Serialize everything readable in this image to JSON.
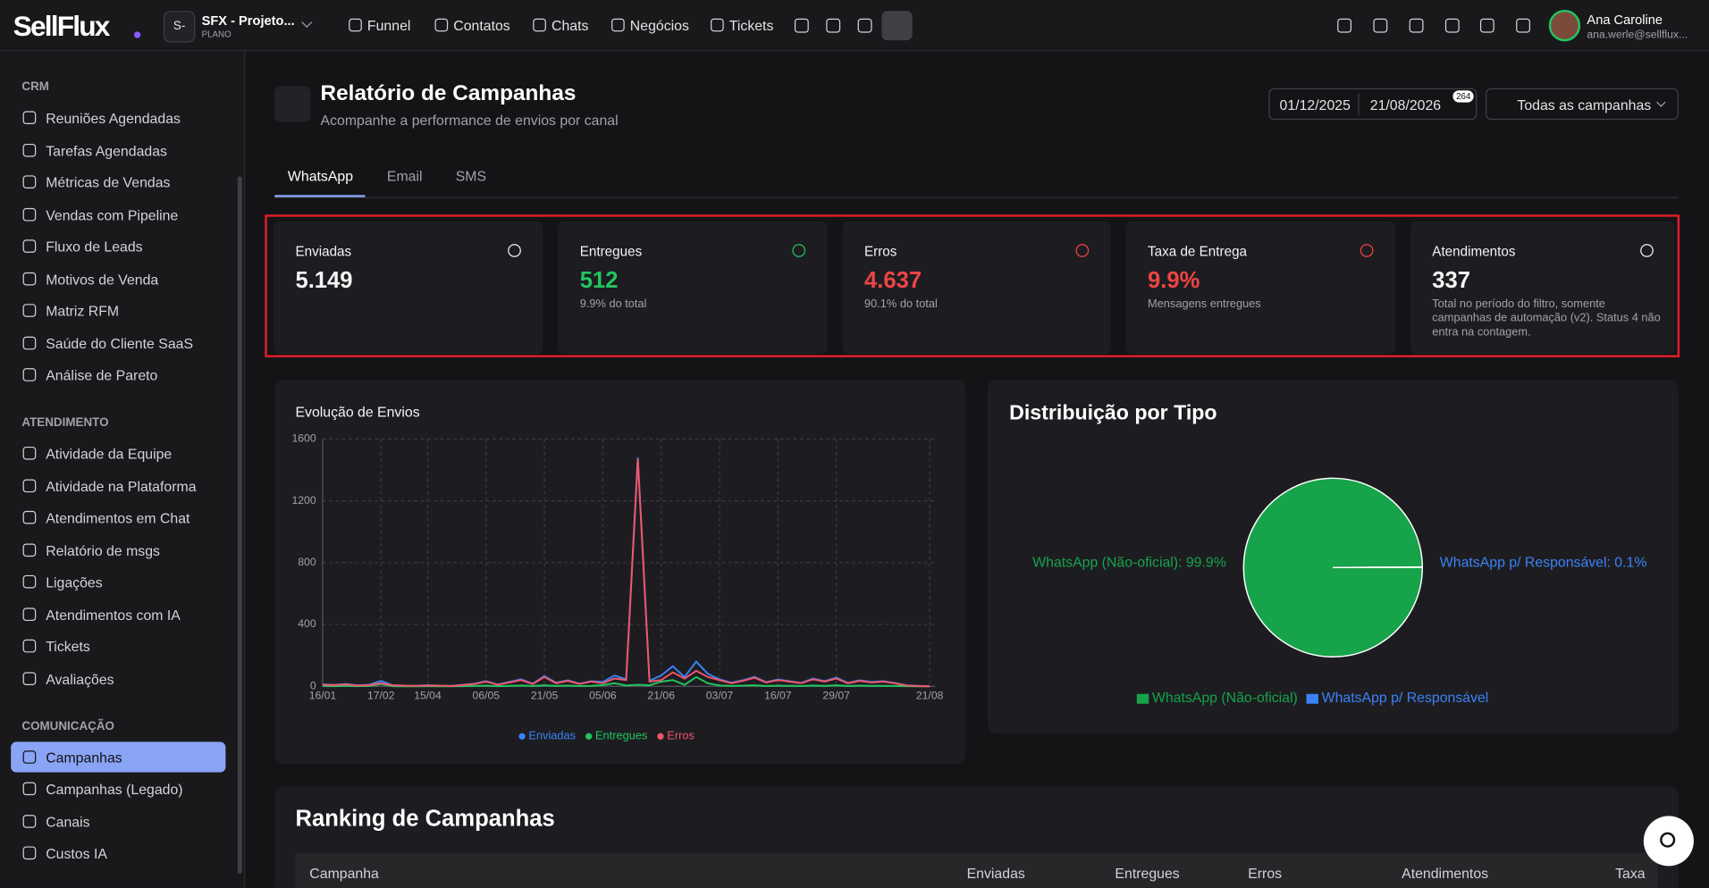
{
  "topbar": {
    "brand": "SellFlux",
    "workspace": {
      "badge": "S-",
      "name": "SFX - Projeto...",
      "plan": "PLANO"
    },
    "nav": [
      "Funnel",
      "Contatos",
      "Chats",
      "Negócios",
      "Tickets"
    ],
    "user": {
      "name": "Ana Caroline",
      "email": "ana.werle@sellflux..."
    }
  },
  "sidebar": {
    "active": "Campanhas",
    "sections": [
      {
        "title": "CRM",
        "items": [
          "Reuniões Agendadas",
          "Tarefas Agendadas",
          "Métricas de Vendas",
          "Vendas com Pipeline",
          "Fluxo de Leads",
          "Motivos de Venda",
          "Matriz RFM",
          "Saúde do Cliente SaaS",
          "Análise de Pareto"
        ]
      },
      {
        "title": "ATENDIMENTO",
        "items": [
          "Atividade da Equipe",
          "Atividade na Plataforma",
          "Atendimentos em Chat",
          "Relatório de msgs",
          "Ligações",
          "Atendimentos com IA",
          "Tickets",
          "Avaliações"
        ]
      },
      {
        "title": "COMUNICAÇÃO",
        "items": [
          "Campanhas",
          "Campanhas (Legado)",
          "Canais",
          "Custos IA"
        ]
      }
    ]
  },
  "header": {
    "title": "Relatório de Campanhas",
    "subtitle": "Acompanhe a performance de envios por canal",
    "date_start": "01/12/2025",
    "date_end": "21/08/2026",
    "badge": "264",
    "filter": "Todas as campanhas"
  },
  "tabs": {
    "items": [
      "WhatsApp",
      "Email",
      "SMS"
    ],
    "active": "WhatsApp"
  },
  "kpis": [
    {
      "label": "Enviadas",
      "value": "5.149",
      "note": "",
      "color": "#f4f4f5"
    },
    {
      "label": "Entregues",
      "value": "512",
      "note": "9.9% do total",
      "color": "#22c55e"
    },
    {
      "label": "Erros",
      "value": "4.637",
      "note": "90.1% do total",
      "color": "#ef4444"
    },
    {
      "label": "Taxa de Entrega",
      "value": "9.9%",
      "note": "Mensagens entregues",
      "color": "#ef4444"
    },
    {
      "label": "Atendimentos",
      "value": "337",
      "note": "Total no período do filtro, somente campanhas de automação (v2). Status 4 não entra na contagem.",
      "color": "#f4f4f5"
    }
  ],
  "chart_data": [
    {
      "type": "line",
      "title": "Evolução de Envios",
      "categories": [
        "16/01",
        null,
        null,
        null,
        null,
        "17/02",
        null,
        null,
        null,
        "15/04",
        null,
        null,
        null,
        null,
        "06/05",
        null,
        null,
        null,
        null,
        "21/05",
        null,
        null,
        null,
        null,
        "05/06",
        null,
        null,
        null,
        null,
        "21/06",
        null,
        null,
        null,
        null,
        "03/07",
        null,
        null,
        null,
        null,
        "16/07",
        null,
        null,
        null,
        null,
        "29/07",
        null,
        null,
        null,
        null,
        null,
        null,
        null,
        "21/08"
      ],
      "series": [
        {
          "name": "Enviadas",
          "color": "#3b82f6",
          "values": [
            12,
            9,
            15,
            6,
            10,
            35,
            7,
            4,
            3,
            6,
            4,
            2,
            9,
            17,
            34,
            11,
            28,
            45,
            17,
            66,
            23,
            39,
            17,
            33,
            28,
            70,
            45,
            1480,
            36,
            70,
            130,
            60,
            160,
            80,
            45,
            23,
            39,
            61,
            27,
            44,
            33,
            22,
            50,
            33,
            56,
            22,
            39,
            28,
            33,
            22,
            6,
            2,
            0
          ]
        },
        {
          "name": "Entregues",
          "color": "#22c55e",
          "values": [
            2,
            1,
            3,
            1,
            2,
            15,
            1,
            0,
            0,
            1,
            0,
            0,
            1,
            2,
            4,
            1,
            3,
            5,
            2,
            6,
            3,
            4,
            2,
            3,
            8,
            20,
            5,
            10,
            6,
            30,
            40,
            10,
            60,
            20,
            5,
            3,
            4,
            6,
            2,
            4,
            3,
            2,
            5,
            3,
            6,
            2,
            4,
            3,
            3,
            2,
            1,
            0,
            0
          ]
        },
        {
          "name": "Erros",
          "color": "#f0566a",
          "values": [
            10,
            8,
            12,
            5,
            8,
            20,
            6,
            4,
            3,
            5,
            4,
            2,
            8,
            15,
            30,
            10,
            25,
            40,
            15,
            60,
            20,
            35,
            15,
            30,
            20,
            50,
            40,
            1470,
            30,
            40,
            90,
            50,
            100,
            60,
            40,
            20,
            35,
            55,
            25,
            40,
            30,
            20,
            45,
            30,
            50,
            20,
            35,
            25,
            30,
            20,
            5,
            2,
            0
          ]
        }
      ],
      "ylim": [
        0,
        1600
      ],
      "yticks": [
        0,
        400,
        800,
        1200,
        1600
      ],
      "grid": true,
      "legend": "bottom"
    },
    {
      "type": "pie",
      "title": "Distribuição por Tipo",
      "categories": [
        "WhatsApp (Não-oficial)",
        "WhatsApp p/ Responsável"
      ],
      "values": [
        99.9,
        0.1
      ],
      "value_labels": [
        "WhatsApp (Não-oficial): 99.9%",
        "WhatsApp p/ Responsável: 0.1%"
      ],
      "colors": [
        "#16a34a",
        "#3b82f6"
      ],
      "legend": "bottom"
    }
  ],
  "ranking": {
    "title": "Ranking de Campanhas",
    "columns": [
      "Campanha",
      "Enviadas",
      "Entregues",
      "Erros",
      "Atendimentos",
      "Taxa"
    ]
  }
}
